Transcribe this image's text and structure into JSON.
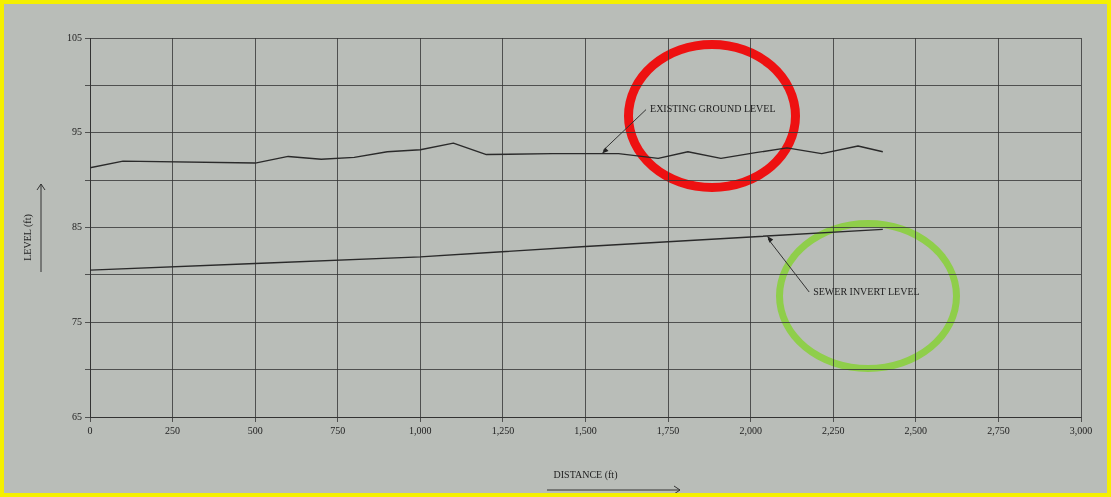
{
  "chart_data": {
    "type": "line",
    "xlabel": "DISTANCE (ft)",
    "ylabel": "LEVEL (ft)",
    "xlim": [
      0,
      3000
    ],
    "xticks": [
      {
        "value": 0,
        "label": "0"
      },
      {
        "value": 250,
        "label": "250"
      },
      {
        "value": 500,
        "label": "500"
      },
      {
        "value": 750,
        "label": "750"
      },
      {
        "value": 1000,
        "label": "1,000"
      },
      {
        "value": 1250,
        "label": "1,250"
      },
      {
        "value": 1500,
        "label": "1,500"
      },
      {
        "value": 1750,
        "label": "1,750"
      },
      {
        "value": 2000,
        "label": "2,000"
      },
      {
        "value": 2250,
        "label": "2,250"
      },
      {
        "value": 2500,
        "label": "2,500"
      },
      {
        "value": 2750,
        "label": "2,750"
      },
      {
        "value": 3000,
        "label": "3,000"
      }
    ],
    "ylim": [
      65,
      105
    ],
    "yticks": [
      65,
      {
        "value": 70,
        "label": null
      },
      75,
      {
        "value": 80,
        "label": null
      },
      85,
      {
        "value": 90,
        "label": null
      },
      95,
      {
        "value": 100,
        "label": null
      },
      105
    ],
    "grid": true,
    "legend": false,
    "marker": "none",
    "line_style": "solid",
    "series": [
      {
        "color": "#2a2a2a",
        "x": [
          0,
          100,
          500,
          600,
          700,
          800,
          900,
          1000,
          1100,
          1200,
          1400,
          1600,
          1720,
          1810,
          1910,
          2015,
          2110,
          2215,
          2325,
          2400
        ],
        "values": [
          91.3,
          92.0,
          91.8,
          92.5,
          92.2,
          92.4,
          93.0,
          93.2,
          93.9,
          92.7,
          92.8,
          92.8,
          92.3,
          93.0,
          92.3,
          92.9,
          93.4,
          92.8,
          93.6,
          93.0
        ]
      },
      {
        "color": "#2a2a2a",
        "x": [
          0,
          500,
          1000,
          1500,
          2000,
          2400
        ],
        "values": [
          80.5,
          81.2,
          81.9,
          83.0,
          84.0,
          84.8
        ]
      }
    ],
    "annotations": [
      {
        "text": "EXISTING GROUND LEVEL",
        "x": 1550,
        "y": 92.8
      },
      {
        "text": "SEWER INVERT LEVEL",
        "x": 2050,
        "y": 84.1
      }
    ]
  }
}
